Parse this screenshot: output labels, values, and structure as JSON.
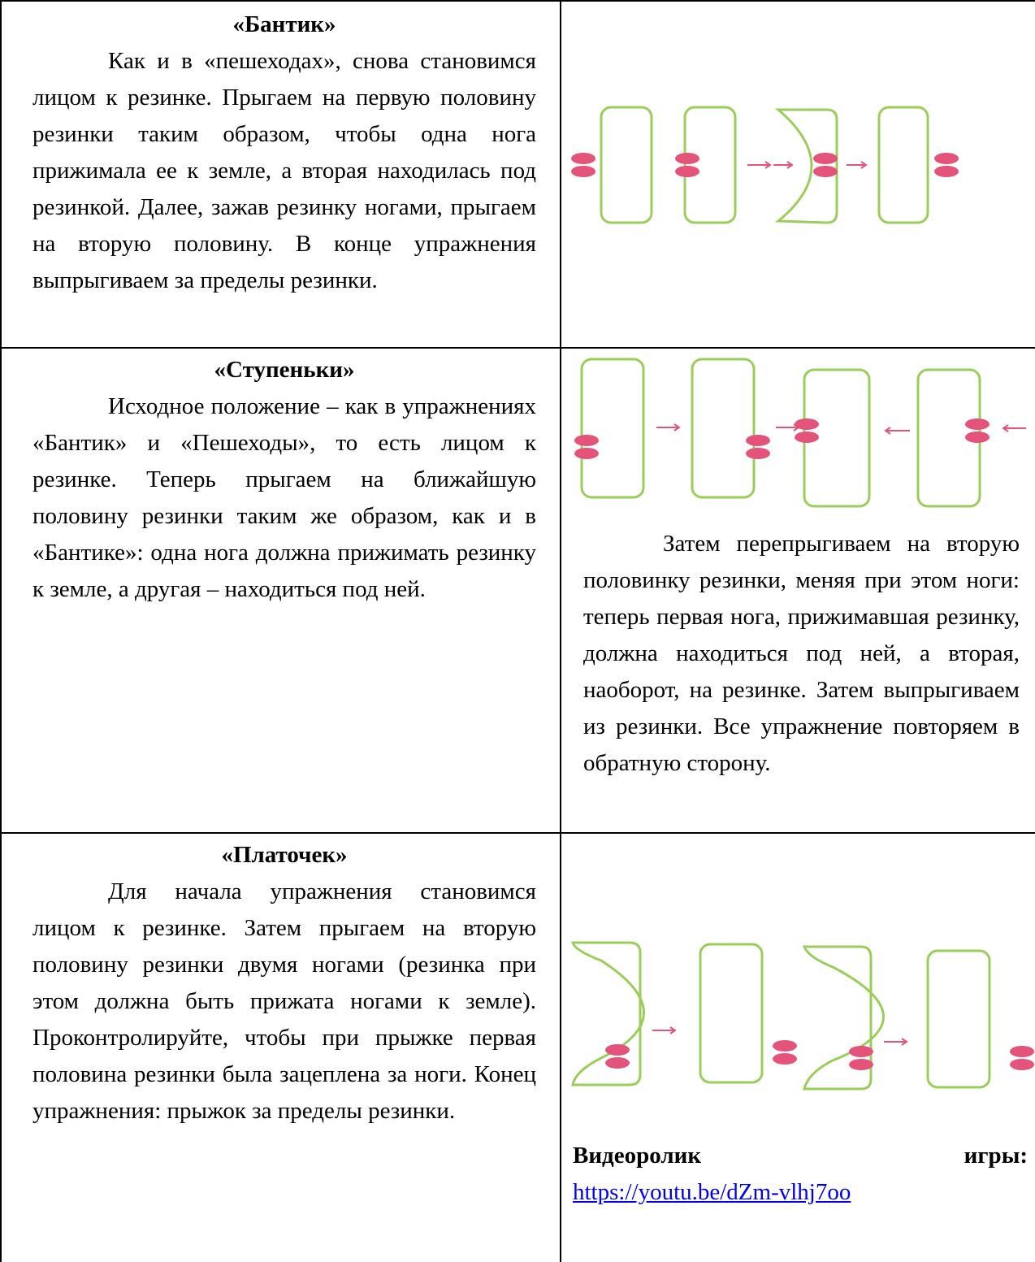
{
  "rows": [
    {
      "title": "«Бантик»",
      "text": "Как и в «пешеходах», снова становимся лицом к резинке. Прыгаем на первую половину резинки таким образом, чтобы одна нога прижимала ее к земле, а вторая находилась под резинкой. Далее, зажав резинку ногами, прыгаем на вторую половину. В конце упражнения выпрыгиваем за пределы резинки."
    },
    {
      "title": "«Ступеньки»",
      "text": "Исходное положение – как в упражнениях «Бантик» и «Пешеходы», то есть лицом к резинке. Теперь прыгаем на ближайшую половину резинки таким же образом, как и в «Бантике»: одна нога должна прижимать резинку к земле, а другая – находиться под ней.",
      "note": "Затем перепрыгиваем на вторую половинку резинки, меняя при этом ноги: теперь первая нога, прижимавшая резинку, должна находиться под ней, а вторая, наоборот, на резинке. Затем выпрыгиваем из резинки. Все упражнение повторяем в обратную сторону."
    },
    {
      "title": "«Платочек»",
      "text": "Для начала упражнения становимся лицом к резинке. Затем прыгаем на вторую половину резинки двумя ногами (резинка при этом должна быть прижата ногами к земле). Проконтролируйте, чтобы при прыжке первая половина резинки была зацеплена за ноги. Конец упражнения: прыжок за пределы резинки.",
      "video_label": "Видеоролик игры:",
      "video_link": "https://youtu.be/dZm-vlhj7oo"
    }
  ]
}
